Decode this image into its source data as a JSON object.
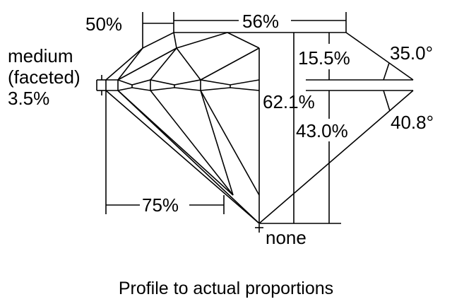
{
  "labels": {
    "lower_half_length": "50%",
    "table": "56%",
    "crown_height": "15.5%",
    "crown_angle": "35.0°",
    "total_depth": "62.1%",
    "pavilion_depth": "43.0%",
    "pavilion_angle": "40.8°",
    "star_length": "75%",
    "culet": "none",
    "girdle_line1": "medium",
    "girdle_line2": "(faceted)",
    "girdle_line3": "3.5%"
  },
  "caption": "Profile to actual proportions",
  "colors": {
    "line": "#000000",
    "background": "#ffffff"
  }
}
